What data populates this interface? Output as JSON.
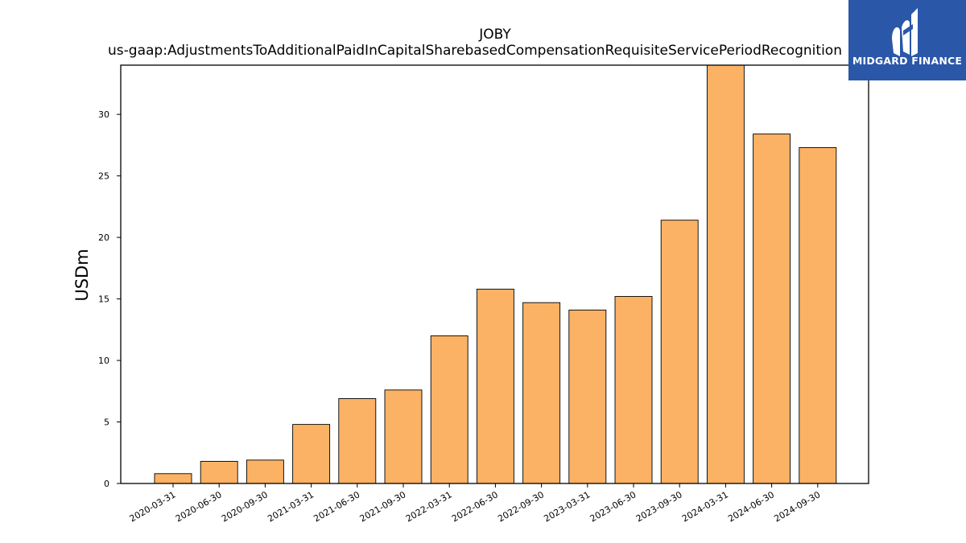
{
  "chart_data": {
    "type": "bar",
    "title": "JOBY",
    "subtitle": "us-gaap:AdjustmentsToAdditionalPaidInCapitalSharebasedCompensationRequisiteServicePeriodRecognition",
    "xlabel": "",
    "ylabel": "USDm",
    "categories": [
      "2020-03-31",
      "2020-06-30",
      "2020-09-30",
      "2021-03-31",
      "2021-06-30",
      "2021-09-30",
      "2022-03-31",
      "2022-06-30",
      "2022-09-30",
      "2023-03-31",
      "2023-06-30",
      "2023-09-30",
      "2024-03-31",
      "2024-06-30",
      "2024-09-30"
    ],
    "values": [
      0.8,
      1.8,
      1.9,
      4.8,
      6.9,
      7.6,
      12.0,
      15.8,
      14.7,
      14.1,
      15.2,
      21.4,
      34.0,
      28.4,
      27.3
    ],
    "ylim": [
      0,
      34
    ],
    "yticks": [
      0,
      5,
      10,
      15,
      20,
      25,
      30
    ],
    "grid": false,
    "bar_color": "#fbb264",
    "bar_edge_color": "#000000"
  },
  "logo": {
    "text": "MIDGARD FINANCE",
    "background": "#2a57a8"
  }
}
